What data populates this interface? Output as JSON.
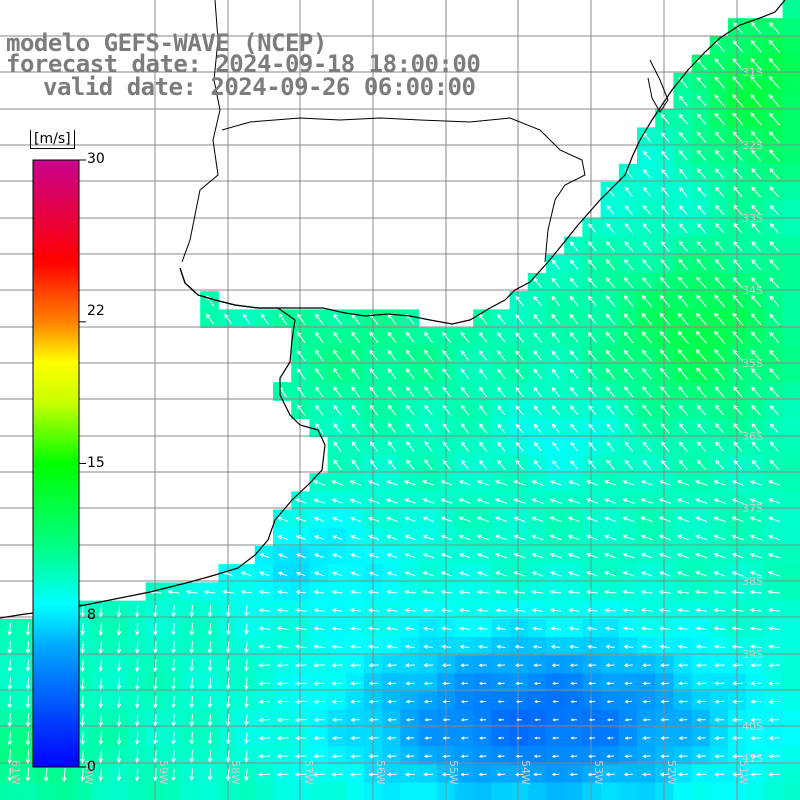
{
  "title": {
    "line1": "modelo GEFS-WAVE (NCEP)",
    "line2": "forecast date: 2024-09-18 18:00:00",
    "line3": "valid date: 2024-09-26 06:00:00"
  },
  "colorbar": {
    "unit": "[m/s]",
    "ticks": [
      "30",
      "22",
      "15",
      "8",
      "0"
    ],
    "tick_values": [
      30,
      22,
      15,
      8,
      0
    ],
    "colors": [
      "#0000ff",
      "#00aaff",
      "#00ffff",
      "#00ff00",
      "#ffff00",
      "#ff8800",
      "#ff0000",
      "#cc0088"
    ]
  },
  "map": {
    "field": "wind speed with direction arrows",
    "lat_labels": [
      "31S",
      "32S",
      "33S",
      "34S",
      "35S",
      "36S",
      "37S",
      "38S",
      "39S",
      "40S",
      "41S"
    ],
    "lon_labels": [
      "61W",
      "60W",
      "59W",
      "58W",
      "57W",
      "56W",
      "55W",
      "54W",
      "53W",
      "52W",
      "51W"
    ],
    "land_color": "#ffffff",
    "grid_color": "#888888",
    "coast_color": "#000000",
    "arrow_color": "#ffffff"
  }
}
